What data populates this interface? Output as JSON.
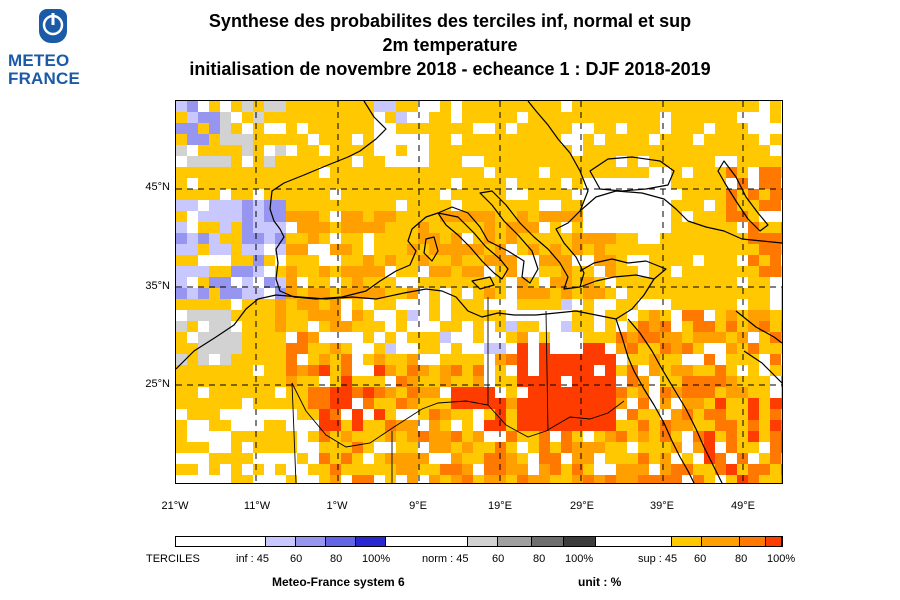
{
  "brand": {
    "line1": "METEO",
    "line2": "FRANCE"
  },
  "title": {
    "line1": "Synthese des probabilites des terciles inf, normal et sup",
    "line2": "2m temperature",
    "line3": "initialisation de novembre 2018  -  echeance 1 : DJF 2018-2019"
  },
  "map": {
    "lat_labels": [
      "45°N",
      "35°N",
      "25°N"
    ],
    "lon_labels": [
      "21°W",
      "11°W",
      "1°W",
      "9°E",
      "19°E",
      "29°E",
      "39°E",
      "49°E"
    ],
    "extent": {
      "lon": [
        -21,
        53
      ],
      "lat": [
        14,
        53
      ]
    }
  },
  "legend": {
    "title": "TERCILES",
    "inf": {
      "label": "inf : 45",
      "ticks": [
        "60",
        "80",
        "100%"
      ],
      "colors": [
        "#c8c8ff",
        "#9696f0",
        "#6464e6",
        "#2828d2"
      ]
    },
    "norm": {
      "label": "norm : 45",
      "ticks": [
        "60",
        "80",
        "100%"
      ],
      "colors": [
        "#d2d2d2",
        "#a0a0a0",
        "#6e6e6e",
        "#3c3c3c"
      ]
    },
    "sup": {
      "label": "sup : 45",
      "ticks": [
        "60",
        "80",
        "100%"
      ],
      "colors": [
        "#ffc800",
        "#ffa000",
        "#ff7800",
        "#ff3c00"
      ]
    }
  },
  "footer": {
    "system": "Meteo-France system 6",
    "unit": "unit : %"
  }
}
